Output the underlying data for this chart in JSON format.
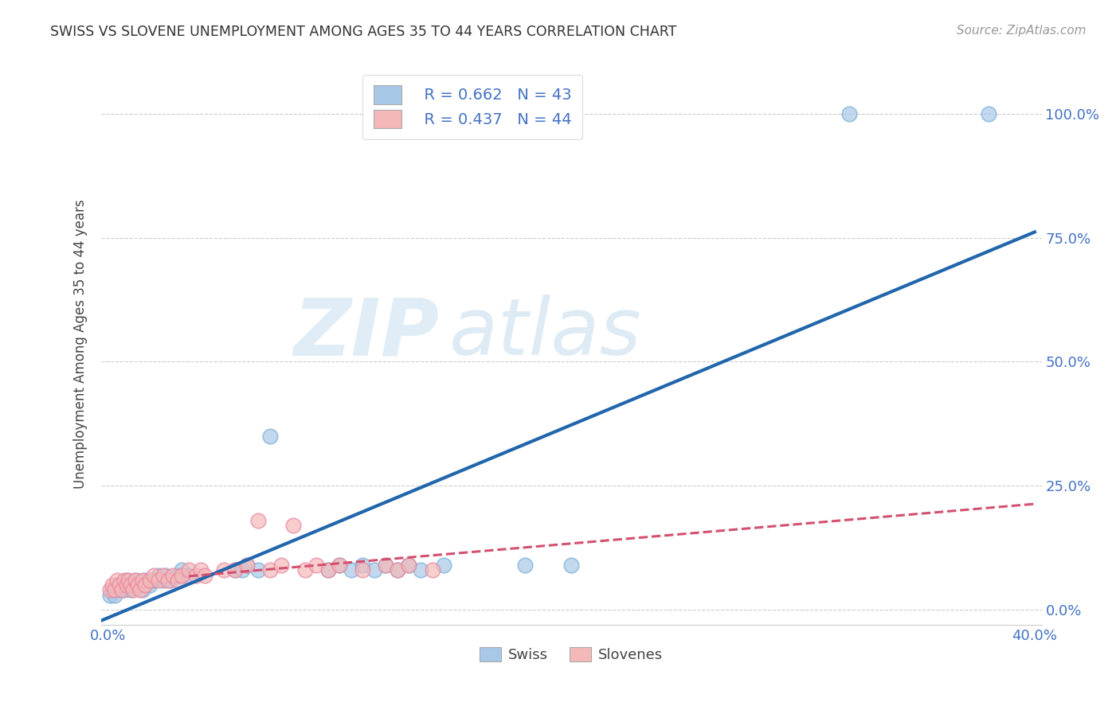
{
  "title": "SWISS VS SLOVENE UNEMPLOYMENT AMONG AGES 35 TO 44 YEARS CORRELATION CHART",
  "source": "Source: ZipAtlas.com",
  "xlabel_swiss": "Swiss",
  "xlabel_slovene": "Slovenes",
  "ylabel": "Unemployment Among Ages 35 to 44 years",
  "xlim": [
    -0.003,
    0.403
  ],
  "ylim": [
    -0.03,
    1.1
  ],
  "xticks": [
    0.0,
    0.1,
    0.2,
    0.3,
    0.4
  ],
  "xtick_labels": [
    "0.0%",
    "",
    "",
    "",
    "40.0%"
  ],
  "yticks": [
    0.0,
    0.25,
    0.5,
    0.75,
    1.0
  ],
  "ytick_labels": [
    "0.0%",
    "25.0%",
    "50.0%",
    "75.0%",
    "100.0%"
  ],
  "swiss_color": "#a8c8e8",
  "swiss_edge_color": "#7ab0d4",
  "slovene_color": "#f4b8b8",
  "slovene_edge_color": "#e888a0",
  "swiss_line_color": "#2166ac",
  "slovene_line_color": "#d45070",
  "legend_R_swiss": "R = 0.662",
  "legend_N_swiss": "N = 43",
  "legend_R_slovene": "R = 0.437",
  "legend_N_slovene": "N = 44",
  "swiss_x": [
    0.001,
    0.002,
    0.003,
    0.004,
    0.005,
    0.006,
    0.007,
    0.008,
    0.009,
    0.01,
    0.011,
    0.012,
    0.013,
    0.015,
    0.016,
    0.018,
    0.02,
    0.022,
    0.024,
    0.025,
    0.027,
    0.03,
    0.032,
    0.035,
    0.055,
    0.058,
    0.06,
    0.065,
    0.07,
    0.095,
    0.1,
    0.105,
    0.11,
    0.115,
    0.12,
    0.125,
    0.13,
    0.135,
    0.145,
    0.18,
    0.2,
    0.32,
    0.38
  ],
  "swiss_y": [
    0.03,
    0.04,
    0.03,
    0.05,
    0.04,
    0.05,
    0.04,
    0.06,
    0.05,
    0.04,
    0.05,
    0.06,
    0.05,
    0.04,
    0.06,
    0.05,
    0.06,
    0.07,
    0.06,
    0.07,
    0.06,
    0.07,
    0.08,
    0.07,
    0.08,
    0.08,
    0.09,
    0.08,
    0.35,
    0.08,
    0.09,
    0.08,
    0.09,
    0.08,
    0.09,
    0.08,
    0.09,
    0.08,
    0.09,
    0.09,
    0.09,
    1.0,
    1.0
  ],
  "slovene_x": [
    0.001,
    0.002,
    0.003,
    0.004,
    0.005,
    0.006,
    0.007,
    0.008,
    0.009,
    0.01,
    0.011,
    0.012,
    0.013,
    0.014,
    0.015,
    0.016,
    0.018,
    0.02,
    0.022,
    0.024,
    0.026,
    0.028,
    0.03,
    0.032,
    0.035,
    0.038,
    0.04,
    0.042,
    0.05,
    0.055,
    0.06,
    0.065,
    0.07,
    0.075,
    0.08,
    0.085,
    0.09,
    0.095,
    0.1,
    0.11,
    0.12,
    0.125,
    0.13,
    0.14
  ],
  "slovene_y": [
    0.04,
    0.05,
    0.04,
    0.06,
    0.05,
    0.04,
    0.06,
    0.05,
    0.06,
    0.05,
    0.04,
    0.06,
    0.05,
    0.04,
    0.06,
    0.05,
    0.06,
    0.07,
    0.06,
    0.07,
    0.06,
    0.07,
    0.06,
    0.07,
    0.08,
    0.07,
    0.08,
    0.07,
    0.08,
    0.08,
    0.09,
    0.18,
    0.08,
    0.09,
    0.17,
    0.08,
    0.09,
    0.08,
    0.09,
    0.08,
    0.09,
    0.08,
    0.09,
    0.08
  ],
  "watermark_ZIP": "ZIP",
  "watermark_atlas": "atlas",
  "background_color": "#ffffff",
  "grid_color": "#cccccc",
  "title_color": "#333333",
  "label_color": "#4472c4",
  "axis_tick_color": "#4472c4"
}
